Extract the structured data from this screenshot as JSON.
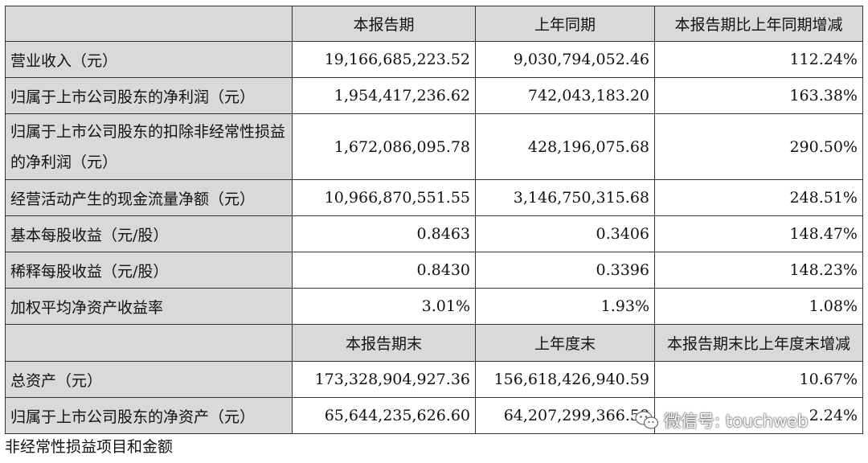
{
  "header1": {
    "col_current": "本报告期",
    "col_prior": "上年同期",
    "col_change": "本报告期比上年同期增减"
  },
  "rows1": [
    {
      "label": "营业收入（元）",
      "current": "19,166,685,223.52",
      "prior": "9,030,794,052.46",
      "change": "112.24%"
    },
    {
      "label": "归属于上市公司股东的净利润（元）",
      "current": "1,954,417,236.62",
      "prior": "742,043,183.20",
      "change": "163.38%"
    },
    {
      "label": "归属于上市公司股东的扣除非经常性损益的净利润（元）",
      "current": "1,672,086,095.78",
      "prior": "428,196,075.68",
      "change": "290.50%"
    },
    {
      "label": "经营活动产生的现金流量净额（元）",
      "current": "10,966,870,551.55",
      "prior": "3,146,750,315.68",
      "change": "248.51%"
    },
    {
      "label": "基本每股收益（元/股）",
      "current": "0.8463",
      "prior": "0.3406",
      "change": "148.47%"
    },
    {
      "label": "稀释每股收益（元/股）",
      "current": "0.8430",
      "prior": "0.3396",
      "change": "148.23%"
    },
    {
      "label": "加权平均净资产收益率",
      "current": "3.01%",
      "prior": "1.93%",
      "change": "1.08%"
    }
  ],
  "header2": {
    "col_current": "本报告期末",
    "col_prior": "上年度末",
    "col_change": "本报告期末比上年度末增减"
  },
  "rows2": [
    {
      "label": "总资产（元）",
      "current": "173,328,904,927.36",
      "prior": "156,618,426,940.59",
      "change": "10.67%"
    },
    {
      "label": "归属于上市公司股东的净资产（元）",
      "current": "65,644,235,626.60",
      "prior": "64,207,299,366.58",
      "change": "2.24%"
    }
  ],
  "footnote": "非经常性损益项目和金额",
  "watermark": {
    "text": "微信号: touchweb",
    "icon": "wechat-icon"
  }
}
